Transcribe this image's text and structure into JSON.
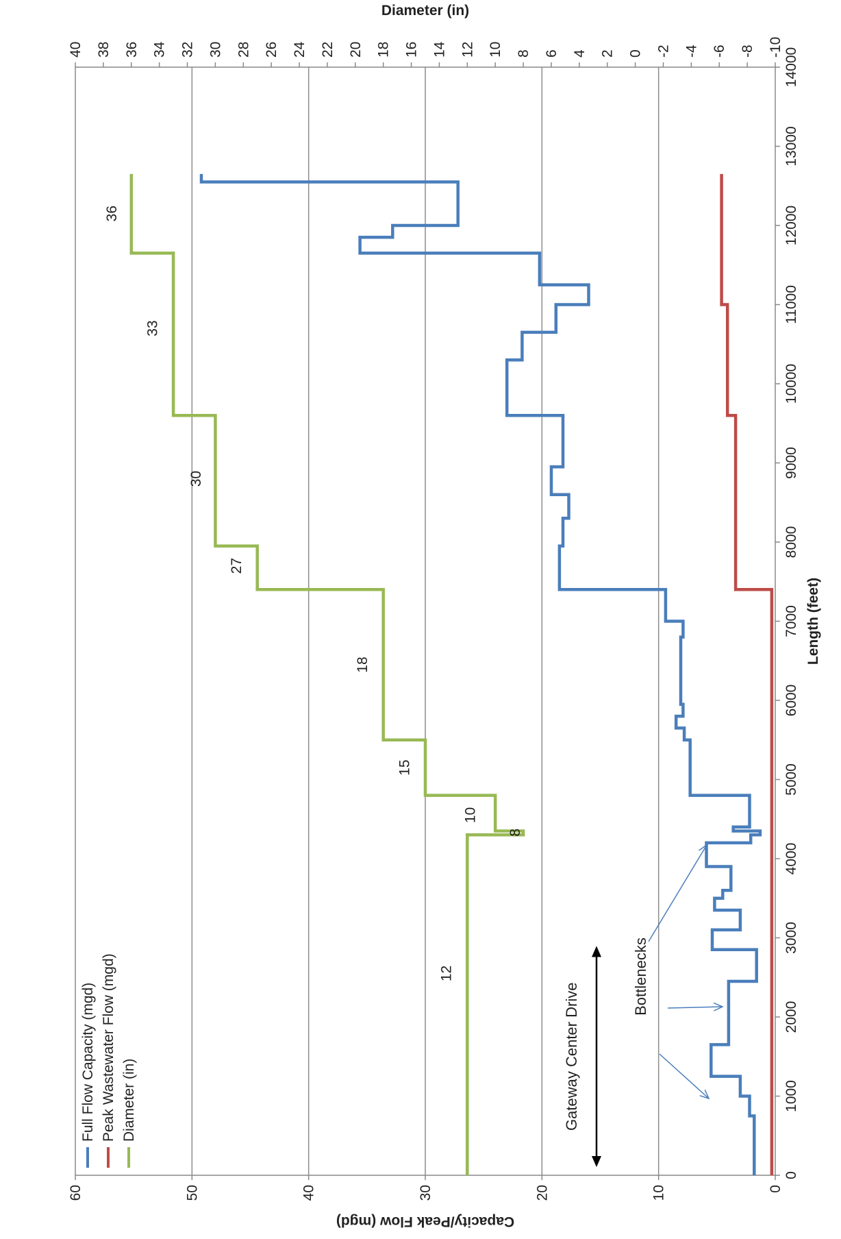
{
  "chart_data": {
    "type": "line",
    "title": "",
    "xlabel": "Length (feet)",
    "ylabel": "Capacity/Peak Flow (mgd)",
    "y2label": "Diameter (in)",
    "xlim": [
      0,
      14000
    ],
    "ylim": [
      0,
      60
    ],
    "y2lim": [
      -10,
      40
    ],
    "x_ticks": [
      "0",
      "1000",
      "2000",
      "3000",
      "4000",
      "5000",
      "6000",
      "7000",
      "8000",
      "9000",
      "10000",
      "11000",
      "12000",
      "13000",
      "14000"
    ],
    "y_ticks": [
      "0",
      "10",
      "20",
      "30",
      "40",
      "50",
      "60"
    ],
    "y2_ticks": [
      "-10",
      "-8",
      "-6",
      "-4",
      "-2",
      "0",
      "2",
      "4",
      "6",
      "8",
      "10",
      "12",
      "14",
      "16",
      "18",
      "20",
      "22",
      "24",
      "26",
      "28",
      "30",
      "32",
      "34",
      "36",
      "38",
      "40"
    ],
    "grid": true,
    "legend_position": "top-left",
    "series": [
      {
        "name": "Full Flow Capacity (mgd)",
        "color": "#4a7ebb",
        "axis": "left",
        "x": [
          0,
          750,
          750,
          1000,
          1000,
          1250,
          1250,
          1650,
          1650,
          2450,
          2450,
          2850,
          2850,
          3100,
          3100,
          3350,
          3350,
          3500,
          3500,
          3600,
          3600,
          3900,
          3900,
          4200,
          4200,
          4300,
          4300,
          4350,
          4350,
          4400,
          4400,
          4800,
          4800,
          5500,
          5500,
          5650,
          5650,
          5800,
          5800,
          5950,
          5950,
          6400,
          6400,
          6800,
          6800,
          7000,
          7000,
          7400,
          7400,
          7950,
          7950,
          8300,
          8300,
          8600,
          8600,
          8950,
          8950,
          9600,
          9600,
          10300,
          10300,
          10650,
          10650,
          11000,
          11000,
          11250,
          11250,
          11650,
          11650,
          11850,
          11850,
          12000,
          12000,
          12550,
          12550,
          12650
        ],
        "y": [
          1.8,
          1.8,
          2.2,
          2.2,
          3.0,
          3.0,
          5.5,
          5.5,
          4.0,
          4.0,
          1.6,
          1.6,
          5.4,
          5.4,
          3.0,
          3.0,
          5.2,
          5.2,
          4.5,
          4.5,
          3.8,
          3.8,
          5.9,
          5.9,
          2.1,
          2.1,
          1.3,
          1.3,
          3.6,
          3.6,
          2.2,
          2.2,
          7.3,
          7.3,
          7.8,
          7.8,
          8.5,
          8.5,
          7.9,
          7.9,
          8.1,
          8.1,
          8.1,
          8.1,
          7.9,
          7.9,
          9.4,
          9.4,
          18.5,
          18.5,
          18.2,
          18.2,
          17.7,
          17.7,
          19.2,
          19.2,
          18.2,
          18.2,
          23.0,
          23.0,
          21.7,
          21.7,
          18.8,
          18.8,
          16.0,
          16.0,
          20.2,
          20.2,
          35.6,
          35.6,
          32.8,
          32.8,
          27.2,
          27.2,
          49.2,
          49.2
        ]
      },
      {
        "name": "Peak Wastewater Flow (mgd)",
        "color": "#be4b48",
        "axis": "left",
        "x": [
          0,
          7400,
          7400,
          9600,
          9600,
          11000,
          11000,
          12650
        ],
        "y": [
          0.3,
          0.3,
          3.4,
          3.4,
          4.1,
          4.1,
          4.6,
          4.6
        ]
      },
      {
        "name": "Diameter (in)",
        "color": "#98b954",
        "axis": "right",
        "x": [
          0,
          4300,
          4300,
          4350,
          4350,
          4800,
          4800,
          5500,
          5500,
          7400,
          7400,
          7950,
          7950,
          9600,
          9600,
          11650,
          11650,
          12650
        ],
        "y": [
          12,
          12,
          8,
          8,
          10,
          10,
          15,
          15,
          18,
          18,
          27,
          27,
          30,
          30,
          33,
          33,
          36,
          36
        ]
      }
    ],
    "segment_labels": [
      {
        "text": "12",
        "x": 2550,
        "y": 13.5
      },
      {
        "text": "8",
        "x": 4330,
        "y": 8.6
      },
      {
        "text": "10",
        "x": 4550,
        "y": 11.8
      },
      {
        "text": "15",
        "x": 5150,
        "y": 16.5
      },
      {
        "text": "18",
        "x": 6450,
        "y": 19.5
      },
      {
        "text": "27",
        "x": 7700,
        "y": 28.5
      },
      {
        "text": "30",
        "x": 8800,
        "y": 31.4
      },
      {
        "text": "33",
        "x": 10700,
        "y": 34.5
      },
      {
        "text": "36",
        "x": 12150,
        "y": 37.4
      }
    ],
    "annotations": {
      "gateway_label": "Gateway Center Drive",
      "gateway_range": [
        0,
        3000
      ],
      "bottlenecks_label": "Bottlenecks"
    }
  }
}
